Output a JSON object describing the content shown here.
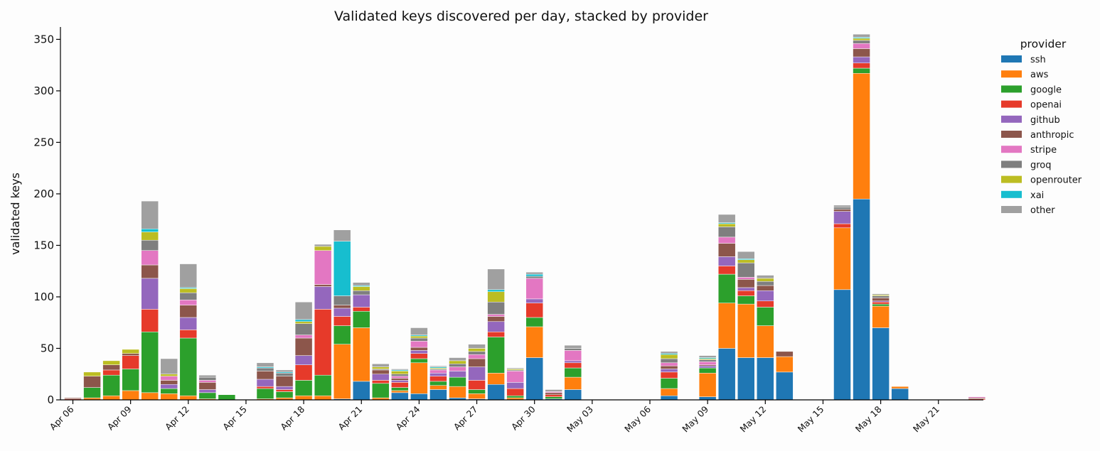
{
  "chart_data": {
    "type": "bar",
    "stacked": true,
    "title": "Validated keys discovered per day, stacked by provider",
    "xlabel": "",
    "ylabel": "validated keys",
    "ylim": [
      0,
      362
    ],
    "yticks": [
      0,
      50,
      100,
      150,
      200,
      250,
      300,
      350
    ],
    "x_start": "Apr 06",
    "x_tick_labels": [
      "Apr 06",
      "Apr 09",
      "Apr 12",
      "Apr 15",
      "Apr 18",
      "Apr 21",
      "Apr 24",
      "Apr 27",
      "Apr 30",
      "May 03",
      "May 06",
      "May 09",
      "May 12",
      "May 15",
      "May 18",
      "May 21"
    ],
    "categories": [
      "Apr 06",
      "Apr 07",
      "Apr 08",
      "Apr 09",
      "Apr 10",
      "Apr 11",
      "Apr 12",
      "Apr 13",
      "Apr 14",
      "Apr 15",
      "Apr 16",
      "Apr 17",
      "Apr 18",
      "Apr 19",
      "Apr 20",
      "Apr 21",
      "Apr 22",
      "Apr 23",
      "Apr 24",
      "Apr 25",
      "Apr 26",
      "Apr 27",
      "Apr 28",
      "Apr 29",
      "Apr 30",
      "May 01",
      "May 02",
      "May 03",
      "May 04",
      "May 05",
      "May 06",
      "May 07",
      "May 08",
      "May 09",
      "May 10",
      "May 11",
      "May 12",
      "May 13",
      "May 14",
      "May 15",
      "May 16",
      "May 17",
      "May 18",
      "May 19",
      "May 20",
      "May 21",
      "May 22",
      "May 23"
    ],
    "legend": {
      "title": "provider",
      "position": "outside-right"
    },
    "series": [
      {
        "name": "ssh",
        "color": "#1f77b4",
        "values": [
          0,
          0,
          0,
          0,
          0,
          0,
          0,
          0,
          0,
          0,
          0,
          0,
          0,
          0,
          1,
          18,
          0,
          7,
          6,
          10,
          2,
          1,
          15,
          0,
          41,
          1,
          10,
          0,
          0,
          0,
          0,
          4,
          0,
          3,
          50,
          41,
          41,
          27,
          0,
          0,
          107,
          195,
          70,
          11,
          0,
          0,
          0,
          0
        ]
      },
      {
        "name": "aws",
        "color": "#ff7f0e",
        "values": [
          0,
          2,
          4,
          9,
          7,
          6,
          4,
          1,
          0,
          0,
          1,
          2,
          4,
          4,
          53,
          52,
          2,
          2,
          30,
          4,
          11,
          5,
          11,
          2,
          30,
          0,
          12,
          0,
          0,
          0,
          0,
          7,
          0,
          23,
          44,
          52,
          31,
          15,
          0,
          0,
          60,
          122,
          21,
          2,
          0,
          0,
          0,
          0
        ]
      },
      {
        "name": "google",
        "color": "#2ca02c",
        "values": [
          0,
          10,
          20,
          21,
          59,
          5,
          56,
          6,
          5,
          0,
          10,
          6,
          15,
          20,
          18,
          16,
          14,
          3,
          4,
          4,
          9,
          4,
          35,
          2,
          9,
          2,
          9,
          0,
          0,
          0,
          0,
          10,
          0,
          5,
          28,
          8,
          18,
          0,
          0,
          0,
          0,
          5,
          2,
          0,
          0,
          0,
          0,
          0
        ]
      },
      {
        "name": "openai",
        "color": "#e63a2a",
        "values": [
          1,
          0,
          5,
          13,
          22,
          0,
          8,
          0,
          0,
          0,
          2,
          2,
          15,
          64,
          9,
          4,
          3,
          5,
          5,
          5,
          0,
          9,
          5,
          7,
          14,
          2,
          5,
          0,
          0,
          0,
          0,
          6,
          0,
          0,
          8,
          5,
          6,
          0,
          0,
          0,
          4,
          5,
          2,
          0,
          0,
          0,
          0,
          1
        ]
      },
      {
        "name": "github",
        "color": "#9467bd",
        "values": [
          0,
          0,
          0,
          0,
          30,
          4,
          12,
          3,
          0,
          0,
          7,
          3,
          9,
          22,
          8,
          12,
          6,
          2,
          3,
          3,
          6,
          13,
          10,
          6,
          4,
          0,
          2,
          0,
          0,
          0,
          0,
          3,
          0,
          2,
          9,
          3,
          10,
          0,
          0,
          0,
          12,
          6,
          1,
          0,
          0,
          0,
          0,
          0
        ]
      },
      {
        "name": "anthropic",
        "color": "#8c564b",
        "values": [
          1,
          11,
          5,
          2,
          13,
          4,
          12,
          7,
          0,
          0,
          8,
          10,
          17,
          2,
          3,
          0,
          4,
          2,
          3,
          0,
          0,
          8,
          5,
          0,
          0,
          2,
          0,
          0,
          0,
          0,
          0,
          3,
          0,
          1,
          13,
          8,
          5,
          5,
          0,
          0,
          2,
          8,
          3,
          0,
          0,
          0,
          0,
          1
        ]
      },
      {
        "name": "stripe",
        "color": "#e377c2",
        "values": [
          0,
          0,
          0,
          0,
          14,
          4,
          5,
          2,
          0,
          0,
          0,
          0,
          3,
          33,
          0,
          0,
          0,
          2,
          6,
          3,
          4,
          4,
          2,
          11,
          20,
          1,
          10,
          0,
          0,
          0,
          0,
          3,
          0,
          3,
          6,
          2,
          0,
          0,
          0,
          0,
          0,
          5,
          0,
          0,
          0,
          0,
          0,
          1
        ]
      },
      {
        "name": "groq",
        "color": "#7f7f7f",
        "values": [
          0,
          0,
          0,
          0,
          10,
          0,
          7,
          3,
          0,
          0,
          3,
          3,
          11,
          0,
          9,
          4,
          1,
          2,
          3,
          1,
          3,
          3,
          12,
          1,
          2,
          0,
          2,
          0,
          0,
          0,
          0,
          4,
          0,
          2,
          10,
          14,
          4,
          0,
          0,
          0,
          2,
          3,
          2,
          0,
          0,
          0,
          0,
          0
        ]
      },
      {
        "name": "openrouter",
        "color": "#bcbd22",
        "values": [
          0,
          4,
          4,
          4,
          8,
          2,
          4,
          0,
          0,
          0,
          0,
          0,
          2,
          4,
          0,
          4,
          2,
          3,
          2,
          1,
          3,
          3,
          10,
          1,
          0,
          0,
          0,
          0,
          0,
          0,
          0,
          4,
          0,
          1,
          3,
          3,
          3,
          0,
          0,
          0,
          0,
          2,
          1,
          0,
          0,
          0,
          0,
          0
        ]
      },
      {
        "name": "xai",
        "color": "#17becf",
        "values": [
          0,
          0,
          0,
          0,
          3,
          0,
          1,
          0,
          0,
          0,
          1,
          1,
          2,
          0,
          53,
          1,
          0,
          1,
          1,
          1,
          0,
          0,
          2,
          0,
          2,
          0,
          0,
          0,
          0,
          0,
          0,
          1,
          0,
          1,
          1,
          1,
          0,
          0,
          0,
          0,
          0,
          1,
          0,
          0,
          0,
          0,
          0,
          0
        ]
      },
      {
        "name": "other",
        "color": "#a0a0a0",
        "values": [
          0,
          0,
          0,
          0,
          27,
          15,
          23,
          2,
          0,
          0,
          4,
          2,
          17,
          2,
          11,
          3,
          3,
          1,
          7,
          1,
          3,
          4,
          20,
          1,
          2,
          2,
          3,
          0,
          0,
          0,
          0,
          2,
          0,
          2,
          8,
          7,
          3,
          0,
          0,
          0,
          2,
          3,
          1,
          0,
          0,
          0,
          0,
          0
        ]
      }
    ]
  }
}
